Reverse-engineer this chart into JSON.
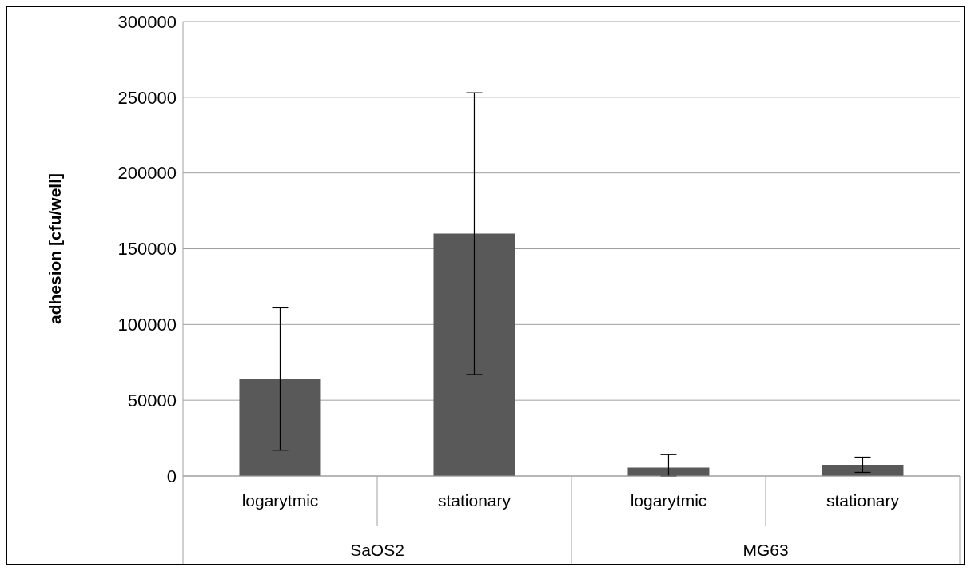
{
  "chart_data": {
    "type": "bar",
    "ylabel": "adhesion [cfu/well]",
    "categories": [
      "logarytmic",
      "stationary",
      "logarytmic",
      "stationary"
    ],
    "values": [
      64000,
      160000,
      5500,
      7400
    ],
    "errors": [
      47000,
      93000,
      [
        0,
        14100
      ],
      5000
    ],
    "color": "#595959",
    "ylim": [
      0,
      300000
    ],
    "yticks": [
      0,
      50000,
      100000,
      150000,
      200000,
      250000,
      300000
    ],
    "grid": "y",
    "annotations": [
      "SaOS2",
      "MG63"
    ]
  }
}
